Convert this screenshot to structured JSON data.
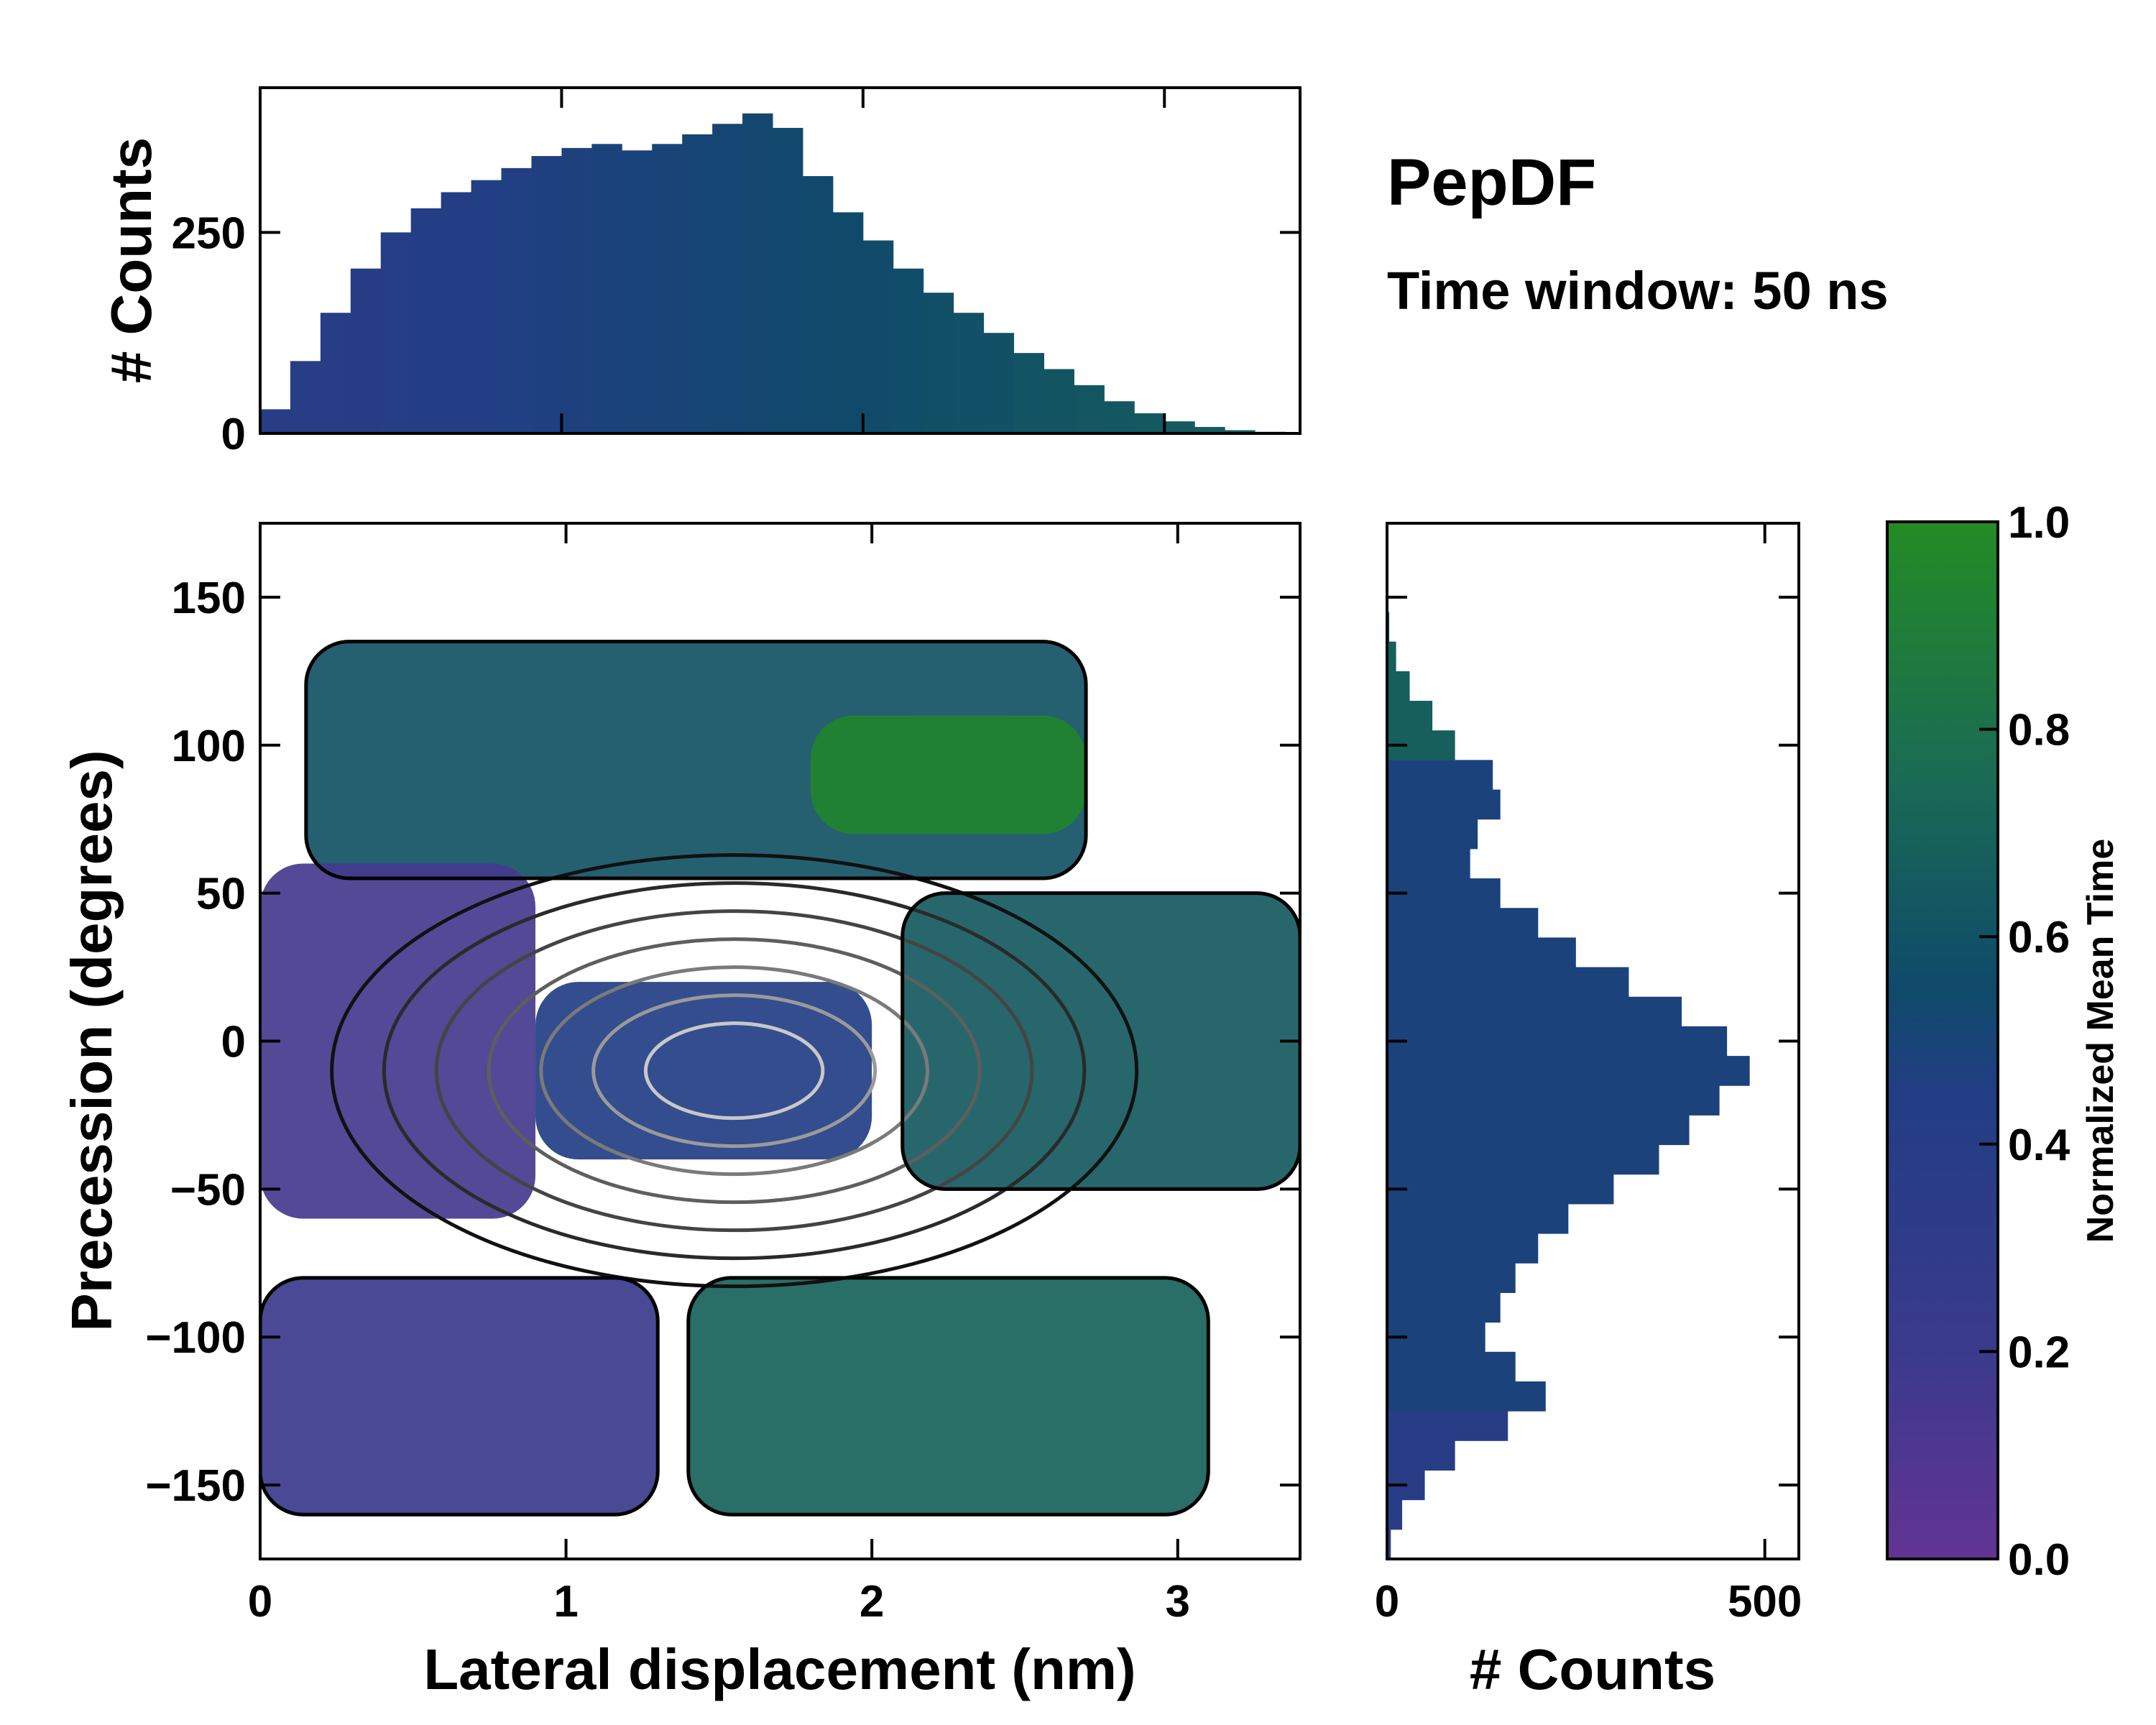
{
  "chart_data": [
    {
      "id": "top_histogram",
      "type": "bar",
      "ylabel": "# Counts",
      "xlim": [
        0,
        3.45
      ],
      "ylim": [
        0,
        430
      ],
      "yticks": [
        0,
        250
      ],
      "x_bin_centers": [
        0.05,
        0.15,
        0.25,
        0.35,
        0.45,
        0.55,
        0.65,
        0.75,
        0.85,
        0.95,
        1.05,
        1.15,
        1.25,
        1.35,
        1.45,
        1.55,
        1.65,
        1.75,
        1.85,
        1.95,
        2.05,
        2.15,
        2.25,
        2.35,
        2.45,
        2.55,
        2.65,
        2.75,
        2.85,
        2.95,
        3.05,
        3.15,
        3.25,
        3.35
      ],
      "values": [
        30,
        90,
        150,
        205,
        250,
        280,
        300,
        315,
        330,
        345,
        355,
        360,
        352,
        360,
        372,
        385,
        398,
        380,
        320,
        275,
        240,
        205,
        175,
        150,
        125,
        100,
        80,
        60,
        40,
        25,
        15,
        8,
        4,
        2
      ]
    },
    {
      "id": "right_histogram",
      "type": "bar",
      "orientation": "horizontal",
      "xlabel": "# Counts",
      "xlim": [
        0,
        545
      ],
      "xticks": [
        0,
        500
      ],
      "ylim": [
        -175,
        175
      ],
      "y_bin_centers": [
        -170,
        -160,
        -150,
        -140,
        -130,
        -120,
        -110,
        -100,
        -90,
        -80,
        -70,
        -60,
        -50,
        -40,
        -30,
        -20,
        -10,
        0,
        10,
        20,
        30,
        40,
        50,
        60,
        70,
        80,
        90,
        100,
        110,
        120,
        130,
        140
      ],
      "values": [
        5,
        20,
        50,
        90,
        160,
        210,
        170,
        130,
        150,
        170,
        200,
        240,
        300,
        360,
        400,
        440,
        480,
        450,
        390,
        320,
        250,
        200,
        150,
        110,
        120,
        150,
        140,
        90,
        60,
        30,
        12,
        3
      ]
    },
    {
      "id": "main_2d_histogram",
      "type": "heatmap",
      "xlabel": "Lateral displacement (nm)",
      "ylabel": "Precession (degrees)",
      "xlim": [
        0,
        3.4
      ],
      "ylim": [
        -175,
        175
      ],
      "xticks": [
        0,
        1,
        2,
        3
      ],
      "yticks": [
        150,
        100,
        50,
        0,
        -50,
        -100,
        -150
      ],
      "color_meaning": "Normalized Mean Time",
      "regions": [
        {
          "name": "upper band",
          "x_range": [
            0.15,
            2.7
          ],
          "y_range": [
            55,
            135
          ],
          "mean_time": 0.6
        },
        {
          "name": "upper-right arm",
          "x_range": [
            1.8,
            2.7
          ],
          "y_range": [
            70,
            110
          ],
          "mean_time": 0.95
        },
        {
          "name": "left lobe",
          "x_range": [
            0.0,
            0.9
          ],
          "y_range": [
            -60,
            60
          ],
          "mean_time": 0.15
        },
        {
          "name": "central core",
          "x_range": [
            0.9,
            2.0
          ],
          "y_range": [
            -40,
            20
          ],
          "mean_time": 0.45
        },
        {
          "name": "right tail",
          "x_range": [
            2.1,
            3.4
          ],
          "y_range": [
            -50,
            50
          ],
          "mean_time": 0.65
        },
        {
          "name": "lower-left band",
          "x_range": [
            0.0,
            1.3
          ],
          "y_range": [
            -160,
            -80
          ],
          "mean_time": 0.2
        },
        {
          "name": "lower-right band",
          "x_range": [
            1.4,
            3.1
          ],
          "y_range": [
            -160,
            -80
          ],
          "mean_time": 0.7
        }
      ]
    },
    {
      "id": "colorbar",
      "type": "colorbar",
      "label": "Normalized Mean Time",
      "range": [
        0,
        1
      ],
      "ticks": [
        "0.0",
        "0.2",
        "0.4",
        "0.6",
        "0.8",
        "1.0"
      ],
      "colors": [
        "#633493",
        "#3a3a8c",
        "#223e84",
        "#0f4a6a",
        "#1a6a55",
        "#238b24"
      ]
    }
  ],
  "annotation": {
    "title": "PepDF",
    "subtitle": "Time window: 50 ns"
  }
}
